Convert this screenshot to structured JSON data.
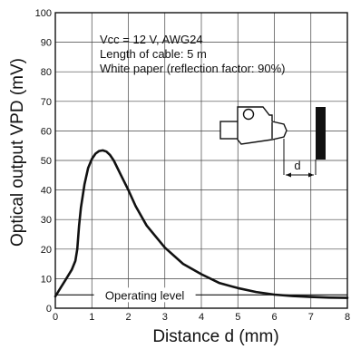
{
  "chart_data": {
    "type": "line",
    "xlabel": "Distance d (mm)",
    "ylabel": "Optical output VPD (mV)",
    "xlim": [
      0,
      8
    ],
    "ylim": [
      0,
      100
    ],
    "xticks": [
      "0",
      "1",
      "2",
      "3",
      "4",
      "5",
      "6",
      "7",
      "8"
    ],
    "yticks": [
      "0",
      "10",
      "20",
      "30",
      "40",
      "50",
      "60",
      "70",
      "80",
      "90",
      "100"
    ],
    "grid": true,
    "annotations": {
      "conditions": [
        "Vcc = 12 V, AWG24",
        "Length of cable: 5 m",
        "White paper (reflection factor: 90%)"
      ],
      "operating_level_label": "Operating level",
      "distance_marker": "d"
    },
    "operating_level": 4.5,
    "series": [
      {
        "x": [
          0,
          0.15,
          0.3,
          0.45,
          0.55,
          0.6,
          0.65,
          0.7,
          0.8,
          0.9,
          1.0,
          1.1,
          1.2,
          1.3,
          1.4,
          1.5,
          1.6,
          1.8,
          2.0,
          2.2,
          2.5,
          3.0,
          3.5,
          4.0,
          4.5,
          5.0,
          5.5,
          6.0,
          6.5,
          7.0,
          7.5,
          8.0
        ],
        "values": [
          4,
          7,
          10,
          13,
          16,
          20,
          28,
          34,
          42,
          47.5,
          50.5,
          52.3,
          53.2,
          53.4,
          53,
          51.8,
          50,
          45,
          40,
          34.5,
          28,
          20.5,
          15,
          11.5,
          8.5,
          6.8,
          5.5,
          4.6,
          4.1,
          3.8,
          3.6,
          3.5
        ]
      }
    ]
  }
}
